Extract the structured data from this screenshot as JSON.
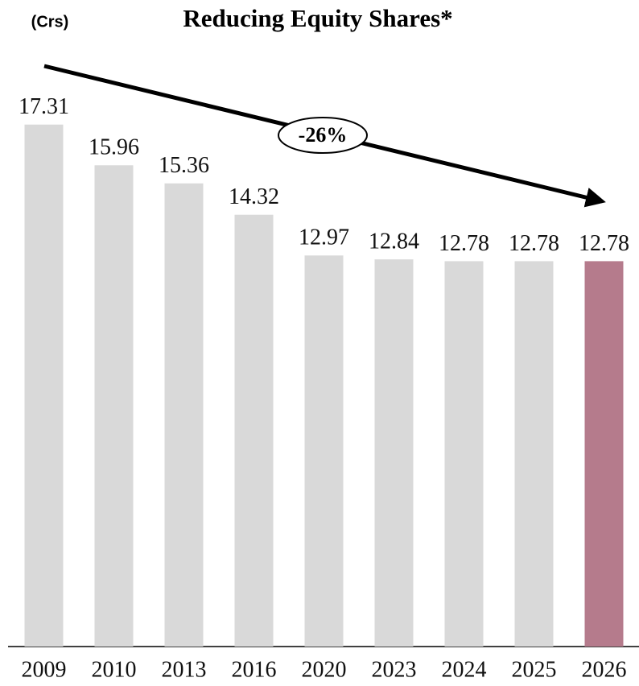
{
  "chart_data": {
    "type": "bar",
    "title": "Reducing Equity Shares*",
    "unit_label": "(Crs)",
    "annotation": "-26%",
    "categories": [
      "2009",
      "2010",
      "2013",
      "2016",
      "2020",
      "2023",
      "2024",
      "2025",
      "2026"
    ],
    "values": [
      17.31,
      15.96,
      15.36,
      14.32,
      12.97,
      12.84,
      12.78,
      12.78,
      12.78
    ],
    "colors": [
      "#d9d9d9",
      "#d9d9d9",
      "#d9d9d9",
      "#d9d9d9",
      "#d9d9d9",
      "#d9d9d9",
      "#d9d9d9",
      "#d9d9d9",
      "#b57b8c"
    ],
    "ylim": [
      0,
      20
    ]
  }
}
